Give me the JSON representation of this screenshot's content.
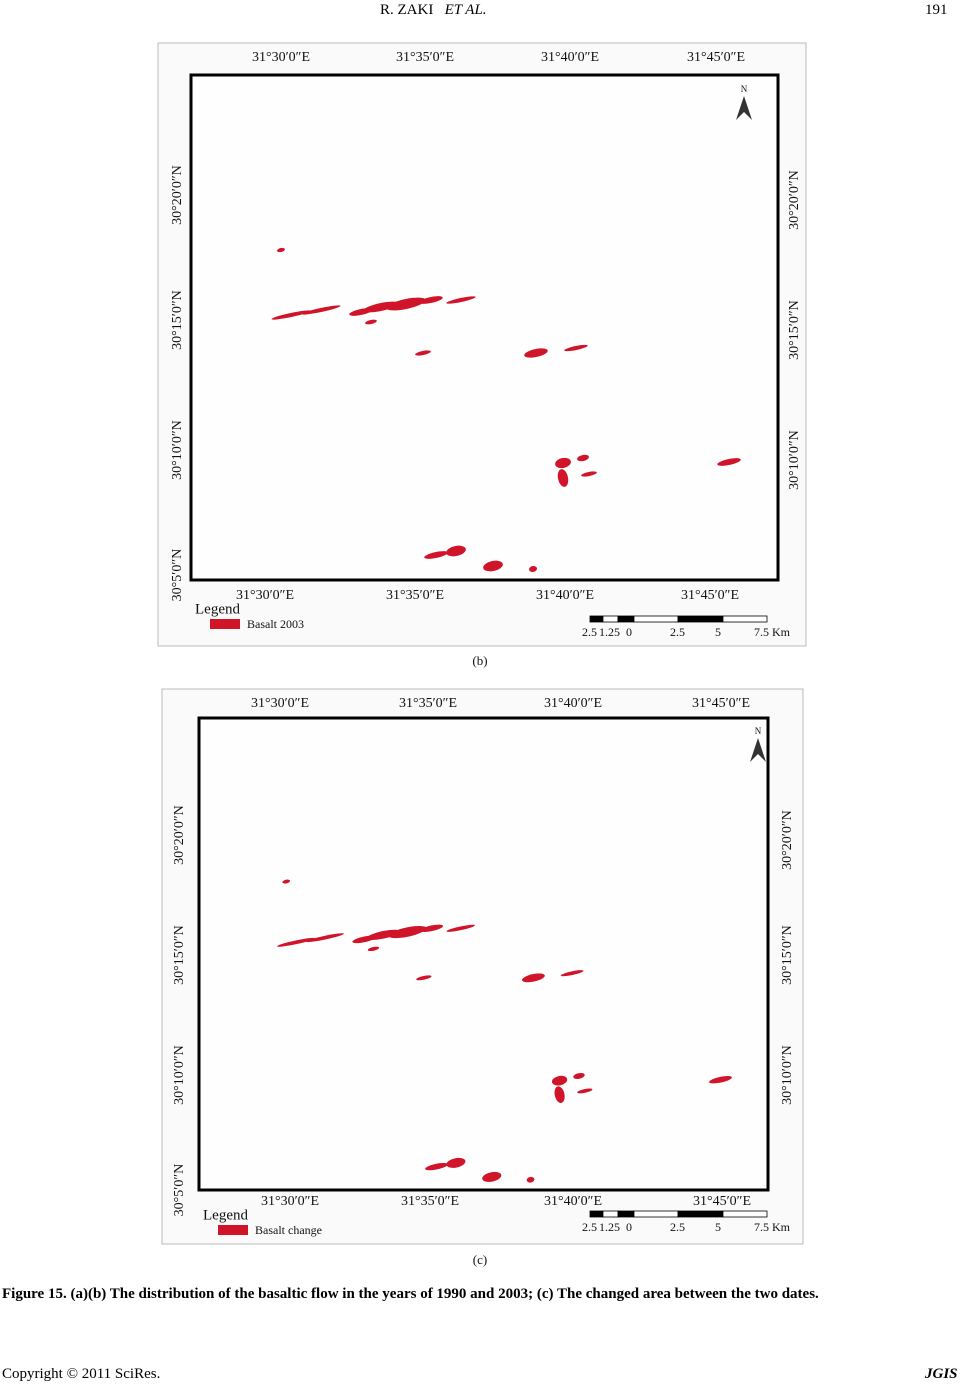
{
  "header": {
    "author": "R. ZAKI",
    "author_suffix": "ET AL.",
    "page": "191"
  },
  "maps": [
    {
      "top_labels": [
        "31°30′0″E",
        "31°35′0″E",
        "31°40′0″E",
        "31°45′0″E"
      ],
      "left_labels": [
        "30°20′0″N",
        "30°15′0″N",
        "30°10′0″N",
        "30°5′0″N"
      ],
      "right_labels": [
        "30°20′0″N",
        "30°15′0″N",
        "30°10′0″N"
      ],
      "bottom_labels": [
        "31°30′0″E",
        "31°35′0″E",
        "31°40′0″E",
        "31°45′0″E"
      ],
      "north": "N",
      "legend_title": "Legend",
      "legend_item": "Basalt 2003",
      "scale_labels": [
        "2.5",
        "1.25",
        "0",
        "2.5",
        "5",
        "7.5 Km"
      ],
      "panel_label": "(b)"
    },
    {
      "top_labels": [
        "31°30′0″E",
        "31°35′0″E",
        "31°40′0″E",
        "31°45′0″E"
      ],
      "left_labels": [
        "30°20′0″N",
        "30°15′0″N",
        "30°10′0″N",
        "30°5′0″N"
      ],
      "right_labels": [
        "30°20′0″N",
        "30°15′0″N",
        "30°10′0″N"
      ],
      "bottom_labels": [
        "31°30′0″E",
        "31°35′0″E",
        "31°40′0″E",
        "31°45′0″E"
      ],
      "north": "N",
      "legend_title": "Legend",
      "legend_item": "Basalt change",
      "scale_labels": [
        "2.5",
        "1.25",
        "0",
        "2.5",
        "5",
        "7.5 Km"
      ],
      "panel_label": "(c)"
    }
  ],
  "caption": "Figure 15. (a)(b) The distribution of the basaltic flow in the years of 1990 and 2003; (c) The changed area between the two dates.",
  "footer": {
    "copyright": "Copyright © 2011 SciRes.",
    "journal": "JGIS"
  }
}
